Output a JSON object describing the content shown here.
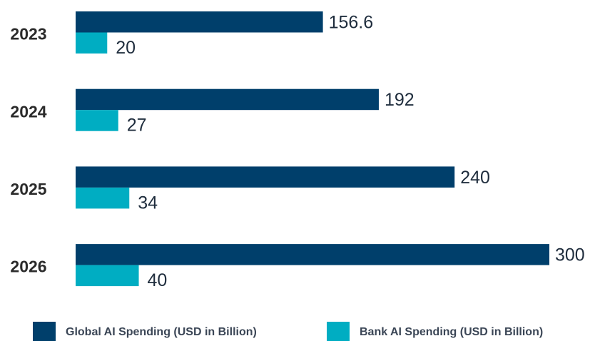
{
  "chart_data": {
    "type": "bar",
    "orientation": "horizontal",
    "categories": [
      "2023",
      "2024",
      "2025",
      "2026"
    ],
    "series": [
      {
        "name": "Global AI Spending (USD in Billion)",
        "color": "#003f6b",
        "values": [
          156.6,
          192,
          240,
          300
        ]
      },
      {
        "name": "Bank AI Spending (USD in Billion)",
        "color": "#00adc2",
        "values": [
          20,
          27,
          34,
          40
        ]
      }
    ],
    "xlim": [
      0,
      300
    ],
    "legend": "bottom"
  }
}
